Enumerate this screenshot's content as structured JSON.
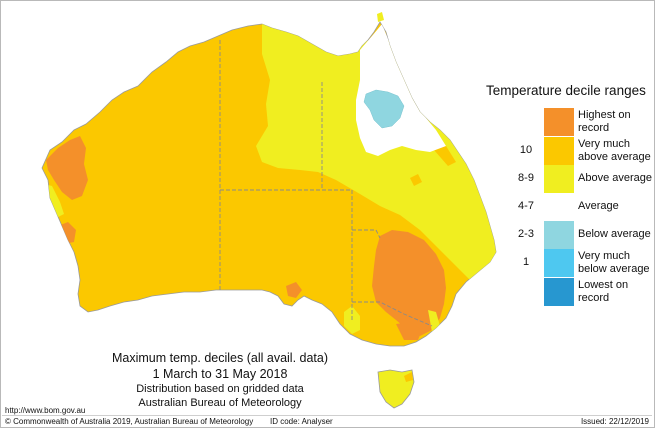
{
  "legend": {
    "title": "Temperature decile ranges",
    "rows": [
      {
        "range": "",
        "label_lines": [
          "Highest on",
          "record"
        ],
        "color": "#f4902a"
      },
      {
        "range": "10",
        "label_lines": [
          "Very much",
          "above average"
        ],
        "color": "#fbc800"
      },
      {
        "range": "8-9",
        "label_lines": [
          "Above average"
        ],
        "color": "#f0ee20"
      },
      {
        "range": "4-7",
        "label_lines": [
          "Average"
        ],
        "color": "#ffffff"
      },
      {
        "range": "2-3",
        "label_lines": [
          "Below average"
        ],
        "color": "#8fd6e0"
      },
      {
        "range": "1",
        "label_lines": [
          "Very much",
          "below average"
        ],
        "color": "#4ec8f0"
      },
      {
        "range": "",
        "label_lines": [
          "Lowest on",
          "record"
        ],
        "color": "#2797d0"
      }
    ]
  },
  "caption": {
    "title": "Maximum temp. deciles (all avail. data)",
    "dates": "1 March to 31 May 2018",
    "distribution": "Distribution based on gridded data",
    "agency": "Australian Bureau of Meteorology"
  },
  "footer": {
    "url": "http://www.bom.gov.au",
    "copyright": "© Commonwealth of Australia 2019, Australian Bureau of Meteorology",
    "id_code": "ID code: Analyser",
    "issued": "Issued: 22/12/2019"
  },
  "map_colors": {
    "very_much_above": "#fbc800",
    "above": "#f0ee20",
    "highest": "#f4902a",
    "average": "#ffffff",
    "below": "#8fd6e0",
    "coast": "#9a9a9a",
    "border": "#8a8a8a"
  }
}
